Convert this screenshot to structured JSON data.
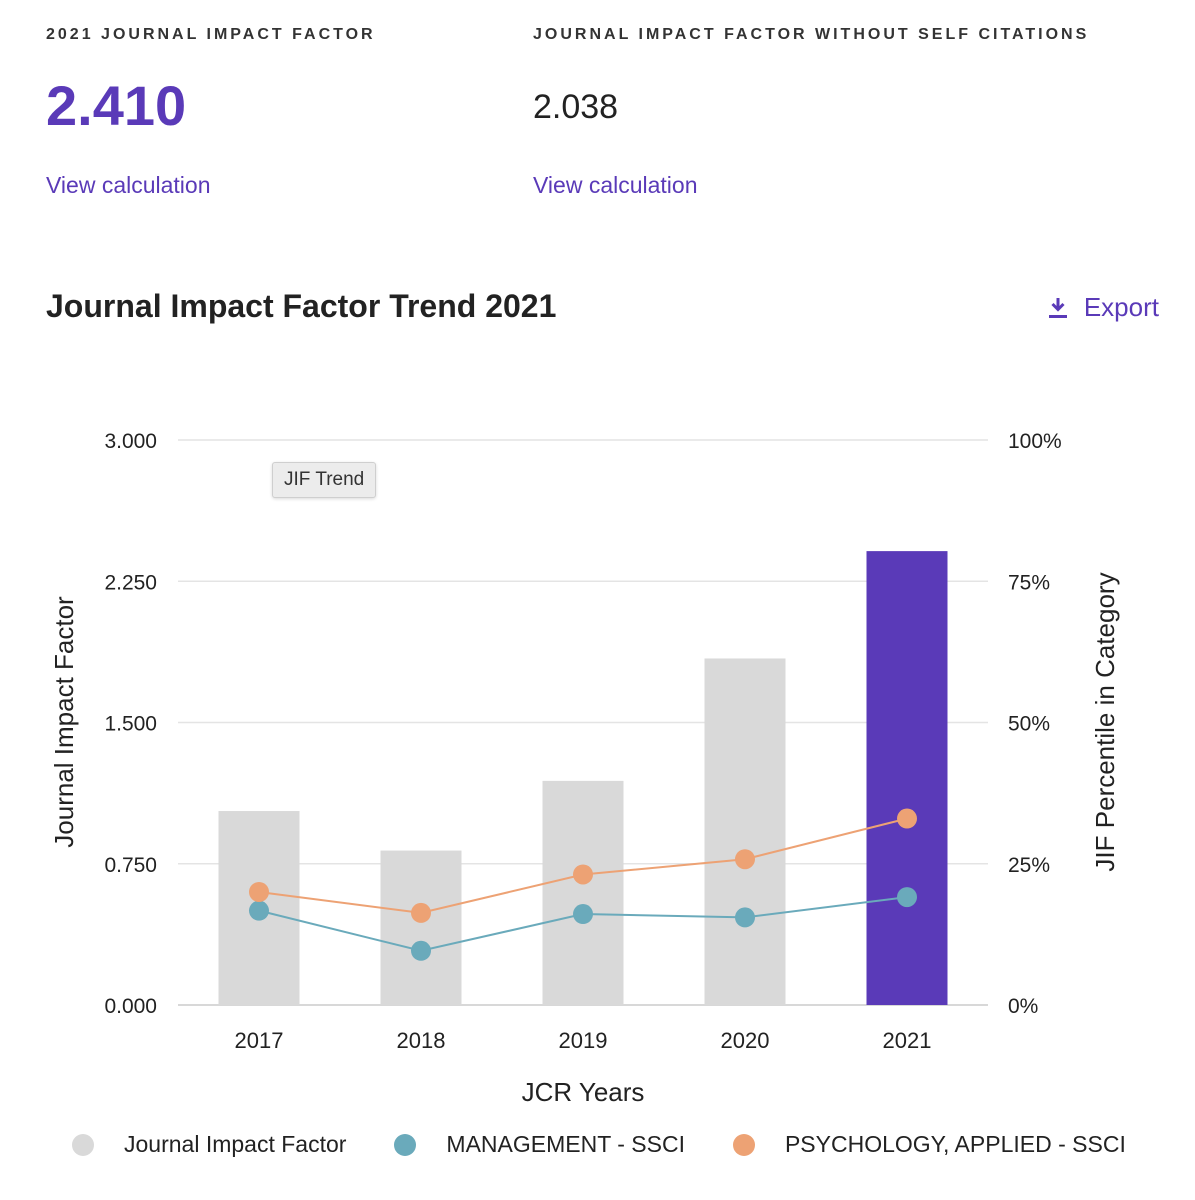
{
  "metrics": [
    {
      "label": "2021 JOURNAL IMPACT FACTOR",
      "value": "2.410",
      "link": "View calculation"
    },
    {
      "label": "JOURNAL IMPACT FACTOR WITHOUT SELF CITATIONS",
      "value": "2.038",
      "link": "View calculation"
    }
  ],
  "section": {
    "title": "Journal Impact Factor Trend 2021",
    "export_label": "Export",
    "export_icon": "download-icon"
  },
  "tooltip": "JIF Trend",
  "colors": {
    "accent": "#5a3ab8",
    "bar": "#d9d9d9",
    "management": "#6aaabb",
    "psychology": "#eda274"
  },
  "chart_data": {
    "type": "bar",
    "categories": [
      "2017",
      "2018",
      "2019",
      "2020",
      "2021"
    ],
    "xlabel": "JCR Years",
    "ylabel": "Journal Impact Factor",
    "ylabel_right": "JIF Percentile in Category",
    "ylim": [
      0,
      3
    ],
    "yticks": [
      "0.000",
      "0.750",
      "1.500",
      "2.250",
      "3.000"
    ],
    "ylim_right": [
      0,
      100
    ],
    "yticks_right": [
      "0%",
      "25%",
      "50%",
      "75%",
      "100%"
    ],
    "grid": true,
    "series": [
      {
        "name": "Journal Impact Factor",
        "type": "bar",
        "axis": "left",
        "values": [
          1.03,
          0.82,
          1.19,
          1.84,
          2.41
        ],
        "highlight_index": 4
      },
      {
        "name": "MANAGEMENT - SSCI",
        "type": "line",
        "axis": "right",
        "values": [
          16.7,
          9.6,
          16.1,
          15.5,
          19.1
        ]
      },
      {
        "name": "PSYCHOLOGY, APPLIED - SSCI",
        "type": "line",
        "axis": "right",
        "values": [
          20.0,
          16.3,
          23.1,
          25.8,
          33.0
        ]
      }
    ],
    "legend": "bottom"
  }
}
